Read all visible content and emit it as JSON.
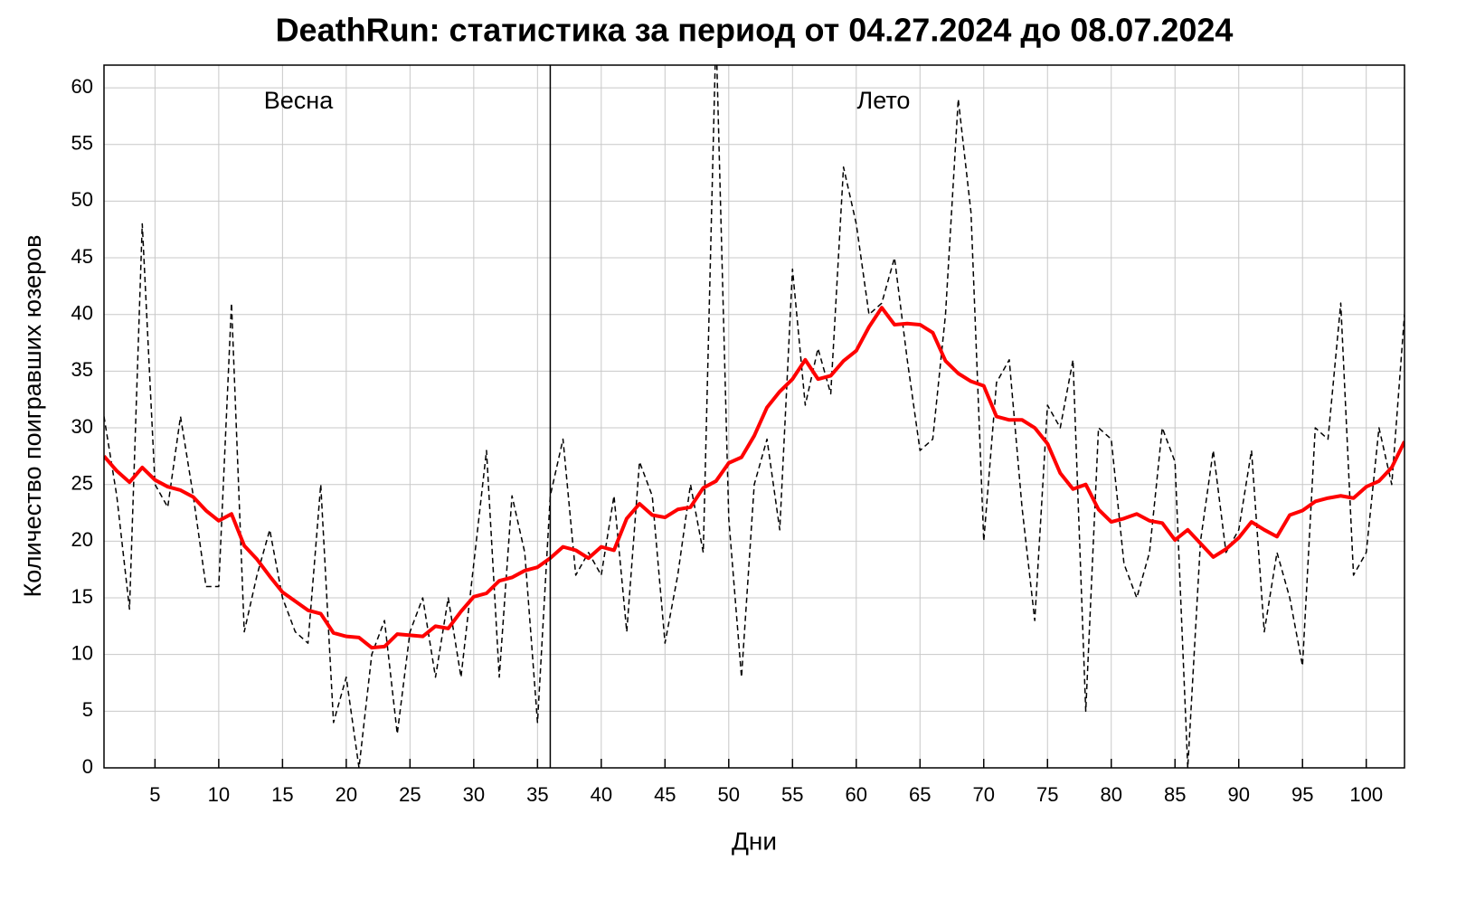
{
  "chart_data": {
    "type": "line",
    "title": "DeathRun: статистика за период от 04.27.2024 до 08.07.2024",
    "xlabel": "Дни",
    "ylabel": "Количество поигравших юзеров",
    "annotations": [
      "Весна",
      "Лето"
    ],
    "vlines": [
      36
    ],
    "x": [
      1,
      2,
      3,
      4,
      5,
      6,
      7,
      8,
      9,
      10,
      11,
      12,
      13,
      14,
      15,
      16,
      17,
      18,
      19,
      20,
      21,
      22,
      23,
      24,
      25,
      26,
      27,
      28,
      29,
      30,
      31,
      32,
      33,
      34,
      35,
      36,
      37,
      38,
      39,
      40,
      41,
      42,
      43,
      44,
      45,
      46,
      47,
      48,
      49,
      50,
      51,
      52,
      53,
      54,
      55,
      56,
      57,
      58,
      59,
      60,
      61,
      62,
      63,
      64,
      65,
      66,
      67,
      68,
      69,
      70,
      71,
      72,
      73,
      74,
      75,
      76,
      77,
      78,
      79,
      80,
      81,
      82,
      83,
      84,
      85,
      86,
      87,
      88,
      89,
      90,
      91,
      92,
      93,
      94,
      95,
      96,
      97,
      98,
      99,
      100,
      101,
      102,
      103
    ],
    "series": [
      {
        "color": "#000000",
        "dashed": true,
        "width": 1.5,
        "values": [
          31,
          24,
          14,
          48,
          25,
          23,
          31,
          24,
          16,
          16,
          41,
          12,
          17,
          21,
          15,
          12,
          11,
          25,
          4,
          8,
          0,
          10,
          13,
          3,
          12,
          15,
          8,
          15,
          8,
          18,
          28,
          8,
          24,
          19,
          4,
          24,
          29,
          17,
          19,
          17,
          24,
          12,
          27,
          24,
          11,
          17,
          25,
          19,
          65,
          22,
          8,
          25,
          29,
          21,
          44,
          32,
          37,
          33,
          53,
          48,
          40,
          41,
          45,
          36,
          28,
          29,
          40,
          59,
          49,
          20,
          34,
          36,
          23,
          13,
          32,
          30,
          36,
          5,
          30,
          29,
          18,
          15,
          19,
          30,
          27,
          0,
          20,
          28,
          19,
          21,
          28,
          12,
          19,
          15,
          9,
          30,
          29,
          41,
          17,
          19,
          30,
          25,
          40
        ]
      },
      {
        "color": "#ff0000",
        "dashed": false,
        "width": 4,
        "values": [
          27.5,
          26.2,
          25.2,
          26.5,
          25.4,
          24.8,
          24.5,
          23.9,
          22.7,
          21.8,
          22.4,
          19.6,
          18.4,
          16.9,
          15.5,
          14.7,
          13.9,
          13.6,
          11.9,
          11.6,
          11.5,
          10.6,
          10.7,
          11.8,
          11.7,
          11.6,
          12.5,
          12.3,
          13.8,
          15.1,
          15.4,
          16.5,
          16.8,
          17.4,
          17.7,
          18.5,
          19.5,
          19.2,
          18.5,
          19.5,
          19.2,
          22.0,
          23.3,
          22.3,
          22.1,
          22.8,
          23.0,
          24.7,
          25.3,
          26.9,
          27.4,
          29.3,
          31.8,
          33.2,
          34.3,
          36.0,
          34.3,
          34.6,
          35.9,
          36.8,
          38.9,
          40.6,
          39.1,
          39.2,
          39.1,
          38.4,
          35.9,
          34.8,
          34.1,
          33.7,
          31.0,
          30.7,
          30.7,
          30.0,
          28.6,
          26.0,
          24.6,
          25.0,
          22.8,
          21.7,
          22.0,
          22.4,
          21.8,
          21.6,
          20.1,
          21.0,
          19.8,
          18.6,
          19.3,
          20.3,
          21.7,
          21.0,
          20.4,
          22.3,
          22.7,
          23.5,
          23.8,
          24.0,
          23.8,
          24.8,
          25.3,
          26.5,
          28.8
        ]
      }
    ],
    "xlim": [
      1,
      103
    ],
    "ylim": [
      0,
      62
    ],
    "xticks": [
      5,
      10,
      15,
      20,
      25,
      30,
      35,
      40,
      45,
      50,
      55,
      60,
      65,
      70,
      75,
      80,
      85,
      90,
      95,
      100
    ],
    "yticks": [
      0,
      5,
      10,
      15,
      20,
      25,
      30,
      35,
      40,
      45,
      50,
      55,
      60
    ],
    "grid": true
  }
}
